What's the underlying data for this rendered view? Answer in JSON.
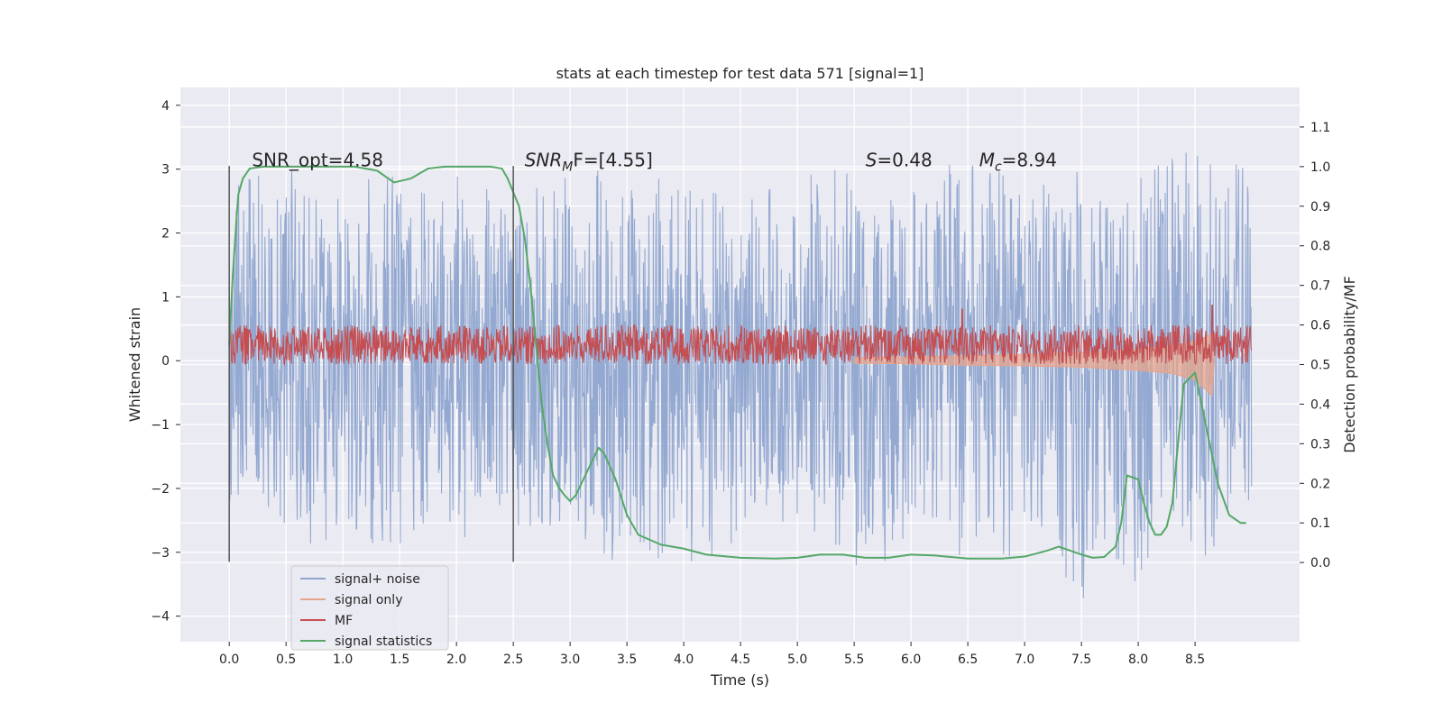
{
  "chart_data": {
    "type": "line",
    "title": "stats at each timestep for test data 571 [signal=1]",
    "xlabel": "Time (s)",
    "ylabel": "Whitened strain",
    "ylabel_right": "Detection probability/MF",
    "xlim": [
      -0.43,
      9.42
    ],
    "ylim": [
      -4.4,
      4.28
    ],
    "ylim_right": [
      -0.2,
      1.2
    ],
    "xticks": [
      "0.0",
      "0.5",
      "1.0",
      "1.5",
      "2.0",
      "2.5",
      "3.0",
      "3.5",
      "4.0",
      "4.5",
      "5.0",
      "5.5",
      "6.0",
      "6.5",
      "7.0",
      "7.5",
      "8.0",
      "8.5"
    ],
    "yticks": [
      "4",
      "3",
      "2",
      "1",
      "0",
      "−1",
      "−2",
      "−3",
      "−4"
    ],
    "yticks_right": [
      "1.1",
      "1.0",
      "0.9",
      "0.8",
      "0.7",
      "0.6",
      "0.5",
      "0.4",
      "0.3",
      "0.2",
      "0.1",
      "0.0"
    ],
    "annotations": {
      "snr_opt": "SNR_opt=4.58",
      "snr_mf_main": "SNR",
      "snr_mf_sub": "M",
      "snr_mf_rest": "F=[4.55]",
      "s_main": "S",
      "s_rest": "=0.48",
      "mc_main": "M",
      "mc_sub": "c",
      "mc_rest": "=8.94"
    },
    "window_markers": [
      {
        "x": 0.0,
        "y_range": [
          -3.15,
          3.05
        ]
      },
      {
        "x": 2.5,
        "y_range": [
          -3.15,
          3.05
        ]
      }
    ],
    "series": [
      {
        "name": "signal+ noise",
        "color": "#8fa5cf",
        "x_range": [
          0.0,
          9.0
        ],
        "envelope_axis": "left",
        "envelope": [
          [
            0.0,
            -2.3,
            2.9
          ],
          [
            0.5,
            -2.8,
            3.0
          ],
          [
            1.0,
            -3.1,
            2.8
          ],
          [
            1.5,
            -2.9,
            2.9
          ],
          [
            2.0,
            -2.9,
            2.9
          ],
          [
            2.5,
            -2.6,
            2.6
          ],
          [
            3.0,
            -2.8,
            3.2
          ],
          [
            3.5,
            -3.4,
            2.9
          ],
          [
            4.0,
            -3.2,
            2.9
          ],
          [
            4.5,
            -2.9,
            2.6
          ],
          [
            5.0,
            -2.6,
            2.9
          ],
          [
            5.5,
            -3.3,
            3.1
          ],
          [
            6.0,
            -3.0,
            2.7
          ],
          [
            6.5,
            -3.2,
            3.3
          ],
          [
            7.0,
            -3.1,
            2.9
          ],
          [
            7.5,
            -3.8,
            3.1
          ],
          [
            8.0,
            -3.5,
            3.3
          ],
          [
            8.5,
            -3.2,
            3.3
          ],
          [
            9.0,
            -2.5,
            3.1
          ]
        ]
      },
      {
        "name": "signal only",
        "color": "#e8a58c",
        "x": [
          5.5,
          6.0,
          6.5,
          7.0,
          7.5,
          8.0,
          8.3,
          8.5,
          8.65,
          8.67
        ],
        "y_pos": [
          0.05,
          0.06,
          0.08,
          0.1,
          0.13,
          0.18,
          0.24,
          0.3,
          0.42,
          0.0
        ],
        "y_neg": [
          -0.04,
          -0.05,
          -0.07,
          -0.08,
          -0.1,
          -0.15,
          -0.2,
          -0.3,
          -0.55,
          0.0
        ]
      },
      {
        "name": "MF",
        "color": "#c44e52",
        "x_range": [
          0.0,
          9.0
        ],
        "envelope_axis": "right",
        "band": [
          0.5,
          0.59
        ],
        "spikes": [
          {
            "x": 6.45,
            "y": 0.64
          },
          {
            "x": 8.65,
            "y": 0.65
          }
        ]
      },
      {
        "name": "signal statistics",
        "color": "#55a868",
        "axis": "right",
        "x": [
          0.0,
          0.03,
          0.06,
          0.08,
          0.12,
          0.18,
          0.3,
          0.6,
          0.9,
          1.1,
          1.3,
          1.45,
          1.6,
          1.75,
          1.9,
          2.1,
          2.3,
          2.4,
          2.45,
          2.55,
          2.6,
          2.65,
          2.7,
          2.75,
          2.8,
          2.85,
          2.9,
          2.95,
          3.0,
          3.05,
          3.1,
          3.2,
          3.25,
          3.3,
          3.4,
          3.5,
          3.6,
          3.8,
          4.0,
          4.2,
          4.5,
          4.8,
          5.0,
          5.2,
          5.4,
          5.6,
          5.8,
          6.0,
          6.2,
          6.5,
          6.8,
          7.0,
          7.2,
          7.3,
          7.5,
          7.6,
          7.7,
          7.8,
          7.85,
          7.9,
          8.0,
          8.05,
          8.1,
          8.15,
          8.2,
          8.25,
          8.3,
          8.35,
          8.4,
          8.5,
          8.6,
          8.7,
          8.8,
          8.9,
          8.95
        ],
        "y": [
          0.55,
          0.72,
          0.85,
          0.93,
          0.97,
          0.995,
          1.0,
          1.0,
          1.0,
          1.0,
          0.99,
          0.96,
          0.97,
          0.995,
          1.0,
          1.0,
          1.0,
          0.995,
          0.97,
          0.9,
          0.82,
          0.7,
          0.55,
          0.4,
          0.3,
          0.22,
          0.19,
          0.17,
          0.155,
          0.17,
          0.2,
          0.26,
          0.29,
          0.275,
          0.21,
          0.12,
          0.07,
          0.045,
          0.035,
          0.02,
          0.012,
          0.01,
          0.012,
          0.02,
          0.02,
          0.012,
          0.012,
          0.02,
          0.018,
          0.01,
          0.01,
          0.015,
          0.03,
          0.04,
          0.02,
          0.012,
          0.014,
          0.04,
          0.1,
          0.22,
          0.21,
          0.15,
          0.1,
          0.07,
          0.07,
          0.09,
          0.15,
          0.3,
          0.45,
          0.48,
          0.34,
          0.2,
          0.12,
          0.1,
          0.1
        ]
      }
    ],
    "legend_position": "lower-left"
  }
}
